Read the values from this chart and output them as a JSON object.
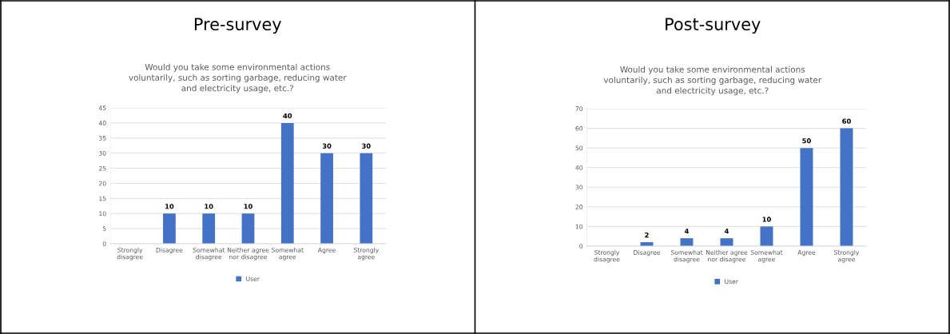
{
  "chart_data": [
    {
      "type": "bar",
      "title": "Pre-survey",
      "subtitle": "Would you take some environmental actions\nvoluntarily, such as sorting garbage, reducing water\nand electricity usage, etc.?",
      "categories": [
        "Strongly\ndisagree",
        "Disagree",
        "Somewhat\ndisagree",
        "Neither agree\nnor disagree",
        "Somewhat\nagree",
        "Agree",
        "Strongly\nagree"
      ],
      "series": [
        {
          "name": "User",
          "color": "#4472c4",
          "values": [
            null,
            10,
            10,
            10,
            40,
            30,
            30
          ]
        }
      ],
      "ylim": [
        0,
        45
      ],
      "yticks": [
        0,
        5,
        10,
        15,
        20,
        25,
        30,
        35,
        40,
        45
      ],
      "grid": "y",
      "legend": "bottom",
      "data_labels": true
    },
    {
      "type": "bar",
      "title": "Post-survey",
      "subtitle": "Would you take some environmental actions\nvoluntarily, such as sorting garbage, reducing water\nand electricity usage, etc.?",
      "categories": [
        "Strongly\ndisagree",
        "Disagree",
        "Somewhat\ndisagree",
        "Neither agree\nnor disagree",
        "Somewhat\nagree",
        "Agree",
        "Strongly\nagree"
      ],
      "series": [
        {
          "name": "User",
          "color": "#4472c4",
          "values": [
            null,
            2,
            4,
            4,
            10,
            50,
            60
          ]
        }
      ],
      "ylim": [
        0,
        70
      ],
      "yticks": [
        0,
        10,
        20,
        30,
        40,
        50,
        60,
        70
      ],
      "grid": "y",
      "legend": "bottom",
      "data_labels": true
    }
  ]
}
